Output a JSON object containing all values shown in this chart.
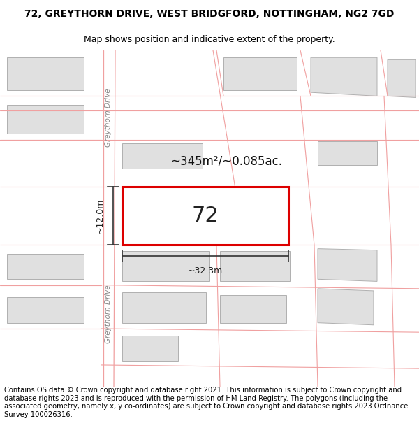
{
  "title_line1": "72, GREYTHORN DRIVE, WEST BRIDGFORD, NOTTINGHAM, NG2 7GD",
  "title_line2": "Map shows position and indicative extent of the property.",
  "footer_text": "Contains OS data © Crown copyright and database right 2021. This information is subject to Crown copyright and database rights 2023 and is reproduced with the permission of HM Land Registry. The polygons (including the associated geometry, namely x, y co-ordinates) are subject to Crown copyright and database rights 2023 Ordnance Survey 100026316.",
  "map_bg": "#ffffff",
  "plot_line_color": "#f0a0a0",
  "building_fill": "#e0e0e0",
  "building_edge": "#b0b0b0",
  "highlight_fill": "#ffffff",
  "highlight_edge": "#dd0000",
  "road_label": "Greythorn Drive",
  "area_label": "~345m²/~0.085ac.",
  "number_label": "72",
  "dim_width": "~32.3m",
  "dim_height": "~12.0m",
  "title_fontsize": 10,
  "subtitle_fontsize": 9,
  "footer_fontsize": 7.2
}
